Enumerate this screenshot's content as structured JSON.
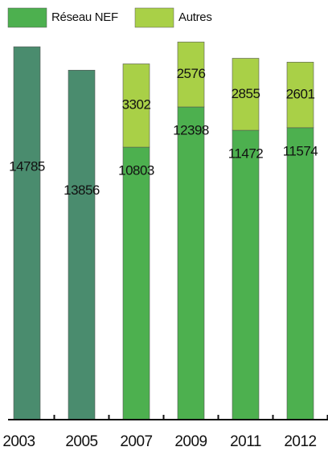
{
  "chart_data": {
    "type": "stacked-bar",
    "categories": [
      "2003",
      "2005",
      "2007",
      "2009",
      "2011",
      "2012"
    ],
    "series": [
      {
        "name": "Réseau NEF",
        "color": "#4db04f",
        "colors": [
          "#4a8c6e",
          "#4a8c6e",
          "#4db04f",
          "#4db04f",
          "#4db04f",
          "#4db04f"
        ],
        "values": [
          14785,
          13856,
          10803,
          12398,
          11472,
          11574
        ]
      },
      {
        "name": "Autres",
        "color": "#a9d047",
        "values": [
          null,
          null,
          3302,
          2576,
          2855,
          2601
        ]
      }
    ],
    "ylim": [
      0,
      16000
    ],
    "legend": "top-left"
  }
}
